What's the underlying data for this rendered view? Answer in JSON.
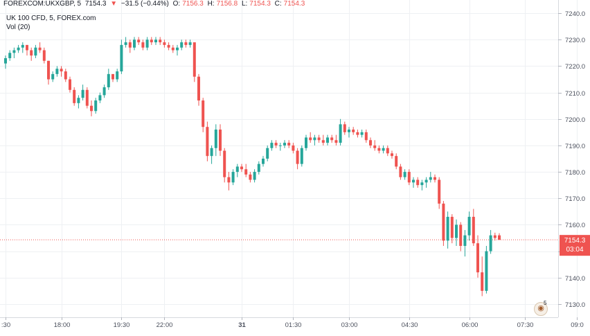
{
  "header": {
    "symbol": "FOREXCOM:UKXGBP, 5",
    "last": "7154.3",
    "direction_arrow": "▼",
    "change": "−31.5 (−0.44%)",
    "o_label": "O:",
    "o_value": "7156.3",
    "h_label": "H:",
    "h_value": "7156.8",
    "l_label": "L:",
    "l_value": "7154.3",
    "c_label": "C:",
    "c_value": "7154.3"
  },
  "subheader": {
    "name": "UK 100 CFD, 5, FOREX.com",
    "volume": "Vol (20)"
  },
  "price_tag": {
    "value": "7154.3",
    "countdown": "03:04"
  },
  "event_marker": {
    "icon": "flag-uk-icon",
    "count": "5"
  },
  "colors": {
    "up": "#26a69a",
    "down": "#ef5350",
    "grid": "#eef0f3",
    "axis_text": "#4a4f5c"
  },
  "chart_data": {
    "type": "candlestick",
    "ylim": [
      7125,
      7245
    ],
    "y_ticks": [
      7130,
      7140,
      7150,
      7160,
      7170,
      7180,
      7190,
      7200,
      7210,
      7220,
      7230,
      7240
    ],
    "y_tick_labels": [
      "7130.0",
      "7140.0",
      "7150.0",
      "7160.0",
      "7170.0",
      "7180.0",
      "7190.0",
      "7200.0",
      "7210.0",
      "7220.0",
      "7230.0",
      "7240.0"
    ],
    "x_tick_labels": [
      ":30",
      "18:00",
      "19:30",
      "22:00",
      "31",
      "01:30",
      "03:00",
      "04:30",
      "06:00",
      "07:30",
      "09:0"
    ],
    "x_tick_bar_index": [
      0,
      13,
      27,
      37,
      55,
      67,
      80,
      94,
      108,
      121,
      133
    ],
    "last_price": 7154.3,
    "grid": true,
    "bars": [
      [
        7221,
        7224,
        7219,
        7223
      ],
      [
        7223,
        7226,
        7222,
        7225
      ],
      [
        7225,
        7227,
        7223,
        7226
      ],
      [
        7226,
        7228,
        7225,
        7227
      ],
      [
        7227,
        7229,
        7225,
        7228
      ],
      [
        7228,
        7228,
        7224,
        7226
      ],
      [
        7226,
        7227,
        7222,
        7224
      ],
      [
        7224,
        7228,
        7223,
        7227
      ],
      [
        7227,
        7229,
        7225,
        7226
      ],
      [
        7226,
        7227,
        7221,
        7222
      ],
      [
        7222,
        7222,
        7213,
        7215
      ],
      [
        7215,
        7218,
        7214,
        7217
      ],
      [
        7217,
        7220,
        7216,
        7219
      ],
      [
        7219,
        7220,
        7216,
        7218
      ],
      [
        7218,
        7219,
        7214,
        7215
      ],
      [
        7215,
        7216,
        7210,
        7211
      ],
      [
        7211,
        7212,
        7205,
        7206
      ],
      [
        7206,
        7209,
        7204,
        7208
      ],
      [
        7208,
        7213,
        7207,
        7211
      ],
      [
        7211,
        7212,
        7204,
        7205
      ],
      [
        7205,
        7207,
        7201,
        7203
      ],
      [
        7203,
        7208,
        7202,
        7207
      ],
      [
        7207,
        7210,
        7206,
        7209
      ],
      [
        7209,
        7213,
        7208,
        7212
      ],
      [
        7212,
        7219,
        7211,
        7217
      ],
      [
        7217,
        7216,
        7214,
        7215
      ],
      [
        7215,
        7219,
        7214,
        7218
      ],
      [
        7218,
        7230,
        7217,
        7228
      ],
      [
        7228,
        7231,
        7227,
        7229
      ],
      [
        7229,
        7230,
        7225,
        7227
      ],
      [
        7227,
        7231,
        7226,
        7230
      ],
      [
        7230,
        7231,
        7228,
        7229
      ],
      [
        7229,
        7230,
        7226,
        7227
      ],
      [
        7227,
        7231,
        7226,
        7230
      ],
      [
        7230,
        7231,
        7228,
        7229
      ],
      [
        7229,
        7231,
        7228,
        7230
      ],
      [
        7230,
        7231,
        7228,
        7229
      ],
      [
        7229,
        7230,
        7227,
        7228
      ],
      [
        7228,
        7229,
        7226,
        7227
      ],
      [
        7227,
        7228,
        7225,
        7226
      ],
      [
        7226,
        7228,
        7224,
        7227
      ],
      [
        7227,
        7230,
        7226,
        7229
      ],
      [
        7229,
        7230,
        7227,
        7228
      ],
      [
        7228,
        7230,
        7227,
        7229
      ],
      [
        7229,
        7228,
        7214,
        7216
      ],
      [
        7216,
        7217,
        7205,
        7207
      ],
      [
        7207,
        7208,
        7195,
        7197
      ],
      [
        7197,
        7199,
        7184,
        7186
      ],
      [
        7186,
        7190,
        7183,
        7189
      ],
      [
        7189,
        7198,
        7186,
        7196
      ],
      [
        7196,
        7198,
        7186,
        7188
      ],
      [
        7188,
        7189,
        7176,
        7178
      ],
      [
        7178,
        7180,
        7173,
        7176
      ],
      [
        7176,
        7181,
        7175,
        7180
      ],
      [
        7180,
        7183,
        7178,
        7182
      ],
      [
        7182,
        7183,
        7180,
        7181
      ],
      [
        7181,
        7183,
        7178,
        7179
      ],
      [
        7179,
        7180,
        7176,
        7177
      ],
      [
        7177,
        7181,
        7176,
        7180
      ],
      [
        7180,
        7184,
        7179,
        7183
      ],
      [
        7183,
        7186,
        7182,
        7185
      ],
      [
        7185,
        7190,
        7184,
        7189
      ],
      [
        7189,
        7192,
        7188,
        7191
      ],
      [
        7191,
        7192,
        7189,
        7190
      ],
      [
        7190,
        7191,
        7188,
        7190
      ],
      [
        7190,
        7192,
        7189,
        7191
      ],
      [
        7191,
        7192,
        7189,
        7190
      ],
      [
        7190,
        7191,
        7187,
        7188
      ],
      [
        7188,
        7189,
        7181,
        7183
      ],
      [
        7183,
        7190,
        7182,
        7189
      ],
      [
        7189,
        7194,
        7188,
        7193
      ],
      [
        7193,
        7195,
        7191,
        7192
      ],
      [
        7192,
        7194,
        7190,
        7193
      ],
      [
        7193,
        7194,
        7191,
        7192
      ],
      [
        7192,
        7194,
        7190,
        7191
      ],
      [
        7191,
        7194,
        7190,
        7193
      ],
      [
        7193,
        7194,
        7191,
        7192
      ],
      [
        7192,
        7194,
        7190,
        7191
      ],
      [
        7191,
        7200,
        7190,
        7198
      ],
      [
        7198,
        7199,
        7194,
        7195
      ],
      [
        7195,
        7197,
        7193,
        7196
      ],
      [
        7196,
        7197,
        7194,
        7195
      ],
      [
        7195,
        7196,
        7193,
        7194
      ],
      [
        7194,
        7196,
        7193,
        7195
      ],
      [
        7195,
        7196,
        7191,
        7192
      ],
      [
        7192,
        7193,
        7189,
        7190
      ],
      [
        7190,
        7192,
        7188,
        7189
      ],
      [
        7189,
        7190,
        7187,
        7188
      ],
      [
        7188,
        7190,
        7187,
        7189
      ],
      [
        7189,
        7190,
        7186,
        7187
      ],
      [
        7187,
        7188,
        7185,
        7186
      ],
      [
        7186,
        7187,
        7181,
        7182
      ],
      [
        7182,
        7183,
        7177,
        7178
      ],
      [
        7178,
        7181,
        7177,
        7180
      ],
      [
        7180,
        7181,
        7175,
        7176
      ],
      [
        7176,
        7178,
        7174,
        7177
      ],
      [
        7177,
        7178,
        7174,
        7175
      ],
      [
        7175,
        7177,
        7173,
        7176
      ],
      [
        7176,
        7178,
        7174,
        7177
      ],
      [
        7177,
        7180,
        7176,
        7178
      ],
      [
        7178,
        7179,
        7176,
        7177
      ],
      [
        7177,
        7178,
        7166,
        7168
      ],
      [
        7168,
        7169,
        7152,
        7154
      ],
      [
        7154,
        7165,
        7151,
        7163
      ],
      [
        7163,
        7164,
        7153,
        7155
      ],
      [
        7155,
        7162,
        7152,
        7160
      ],
      [
        7160,
        7161,
        7150,
        7152
      ],
      [
        7152,
        7158,
        7148,
        7156
      ],
      [
        7156,
        7165,
        7154,
        7163
      ],
      [
        7163,
        7166,
        7152,
        7153
      ],
      [
        7153,
        7156,
        7140,
        7142
      ],
      [
        7142,
        7148,
        7133,
        7135
      ],
      [
        7135,
        7152,
        7134,
        7150
      ],
      [
        7150,
        7158,
        7149,
        7156
      ],
      [
        7156,
        7157,
        7154,
        7155
      ],
      [
        7156,
        7156.8,
        7154.3,
        7154.3
      ]
    ]
  }
}
